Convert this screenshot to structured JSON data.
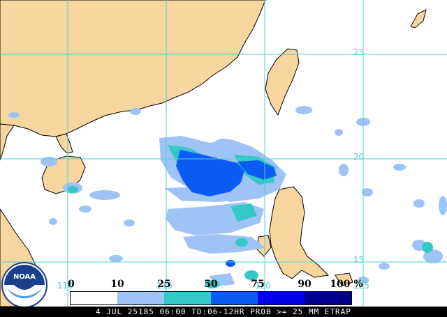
{
  "map": {
    "land_color": "#f7d6a0",
    "water_color": "#ffffff",
    "grid_color": "#4dd0d0",
    "coast_color": "#000000",
    "lat_labels": [
      "25",
      "20",
      "15"
    ],
    "lon_labels": [
      "110",
      "115",
      "120",
      "125"
    ]
  },
  "legend": {
    "ticks": [
      "0",
      "10",
      "25",
      "50",
      "75",
      "90",
      "100 %"
    ],
    "colors": [
      "#ffffff",
      "#9ec3f5",
      "#34c8c8",
      "#0a5cf5",
      "#0000e6",
      "#00008c"
    ]
  },
  "footer": {
    "text": "4 JUL 25185 06:00 TD:06-12HR PROB >= 25 MM ETRAP"
  },
  "logo": {
    "text": "NOAA",
    "icon": "noaa-logo-icon"
  }
}
